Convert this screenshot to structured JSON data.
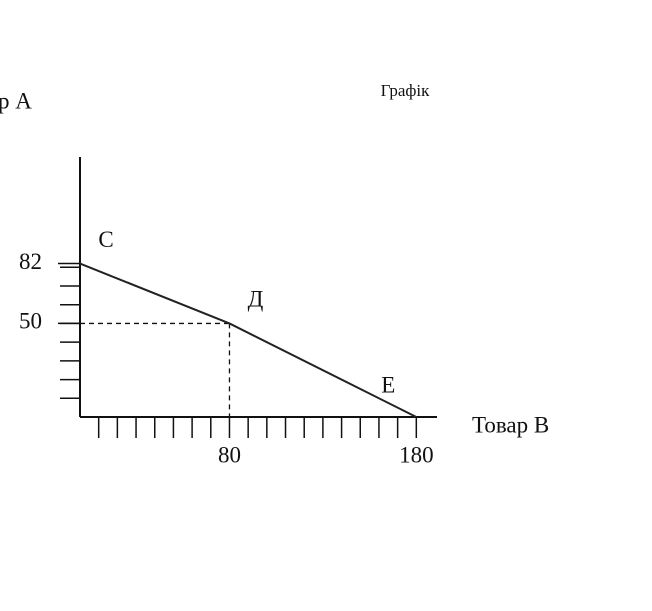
{
  "chart_data": {
    "type": "line",
    "title": "Графік",
    "y_label": "р А",
    "x_label": "Товар В",
    "x": [
      0,
      80,
      180
    ],
    "series": [
      {
        "values": [
          82,
          50,
          0
        ],
        "color": "#222222",
        "point_labels": [
          "С",
          "Д",
          "Е"
        ]
      }
    ],
    "xlim": [
      0,
      190
    ],
    "ylim": [
      0,
      140
    ],
    "xticks": [
      80,
      180
    ],
    "yticks": [
      82,
      50
    ],
    "xminorticks": [
      10,
      20,
      30,
      40,
      50,
      60,
      70,
      80,
      90,
      100,
      110,
      120,
      130,
      140,
      150,
      160,
      170,
      180
    ],
    "yminorticks": [
      10,
      20,
      30,
      40,
      50,
      60,
      70,
      80
    ],
    "guides": true
  }
}
